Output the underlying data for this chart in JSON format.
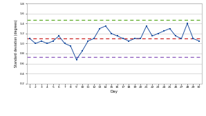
{
  "title": "",
  "xlabel": "Day",
  "ylabel": "Standard deviation (degrees)",
  "days": [
    1,
    2,
    3,
    4,
    5,
    6,
    7,
    8,
    9,
    10,
    11,
    12,
    13,
    14,
    15,
    16,
    17,
    18,
    19,
    20,
    21,
    22,
    23,
    24,
    25,
    26,
    27,
    28,
    29,
    30
  ],
  "S": [
    1.1,
    1.0,
    1.05,
    1.0,
    1.05,
    1.15,
    1.0,
    0.95,
    0.68,
    0.85,
    1.05,
    1.1,
    1.3,
    1.35,
    1.2,
    1.15,
    1.1,
    1.05,
    1.1,
    1.1,
    1.35,
    1.15,
    1.2,
    1.25,
    1.3,
    1.15,
    1.1,
    1.4,
    1.1,
    1.05
  ],
  "CL": 1.1,
  "UCL": 1.47,
  "LCL": 0.73,
  "ylim": [
    0.2,
    1.8
  ],
  "yticks": [
    0.2,
    0.4,
    0.6,
    0.8,
    1.0,
    1.2,
    1.4,
    1.6,
    1.8
  ],
  "S_color": "#1c4fa0",
  "CL_color": "#cc2222",
  "UCL_color": "#5aaa22",
  "LCL_color": "#8855bb",
  "bg_color": "#ffffff",
  "plot_bg": "#ffffff",
  "grid_color": "#cccccc"
}
